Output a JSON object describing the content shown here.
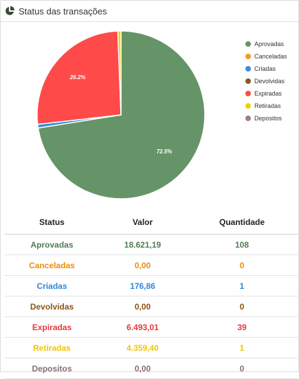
{
  "header": {
    "title": "Status das transações",
    "icon": "pie-chart-icon"
  },
  "chart_data": {
    "type": "pie",
    "categories": [
      "Aprovadas",
      "Canceladas",
      "Criadas",
      "Devolvidas",
      "Expiradas",
      "Retiradas",
      "Depositos"
    ],
    "values": [
      18621.19,
      0,
      176.86,
      0,
      6493.01,
      4359.4,
      0
    ],
    "display_values": [
      72.5,
      0,
      0.7,
      0,
      26.2,
      0.6,
      0
    ],
    "slice_labels": [
      "72.5%",
      "",
      "",
      "",
      "26.2%",
      "",
      ""
    ],
    "colors": [
      "#659468",
      "#f29d1a",
      "#3b8bdc",
      "#8b5a1c",
      "#ff4a4a",
      "#f4d000",
      "#9a7f8b"
    ],
    "legend_position": "right"
  },
  "legend": [
    {
      "label": "Aprovadas",
      "color": "#659468"
    },
    {
      "label": "Canceladas",
      "color": "#f29d1a"
    },
    {
      "label": "Criadas",
      "color": "#3b8bdc"
    },
    {
      "label": "Devolvidas",
      "color": "#8b5a1c"
    },
    {
      "label": "Expiradas",
      "color": "#ff4a4a"
    },
    {
      "label": "Retiradas",
      "color": "#f4d000"
    },
    {
      "label": "Depositos",
      "color": "#9a7f8b"
    }
  ],
  "table": {
    "headers": [
      "Status",
      "Valor",
      "Quantidade"
    ],
    "rows": [
      {
        "status": "Aprovadas",
        "valor": "18.621,19",
        "quantidade": "108",
        "color": "#4f7d52"
      },
      {
        "status": "Canceladas",
        "valor": "0,00",
        "quantidade": "0",
        "color": "#ec8d0e"
      },
      {
        "status": "Criadas",
        "valor": "176,86",
        "quantidade": "1",
        "color": "#2e86de"
      },
      {
        "status": "Devolvidas",
        "valor": "0,00",
        "quantidade": "0",
        "color": "#8a5515"
      },
      {
        "status": "Expiradas",
        "valor": "6.493,01",
        "quantidade": "39",
        "color": "#e8373c"
      },
      {
        "status": "Retiradas",
        "valor": "4.359,40",
        "quantidade": "1",
        "color": "#f1c40f"
      },
      {
        "status": "Depositos",
        "valor": "0,00",
        "quantidade": "0",
        "color": "#8b6b78"
      }
    ]
  }
}
